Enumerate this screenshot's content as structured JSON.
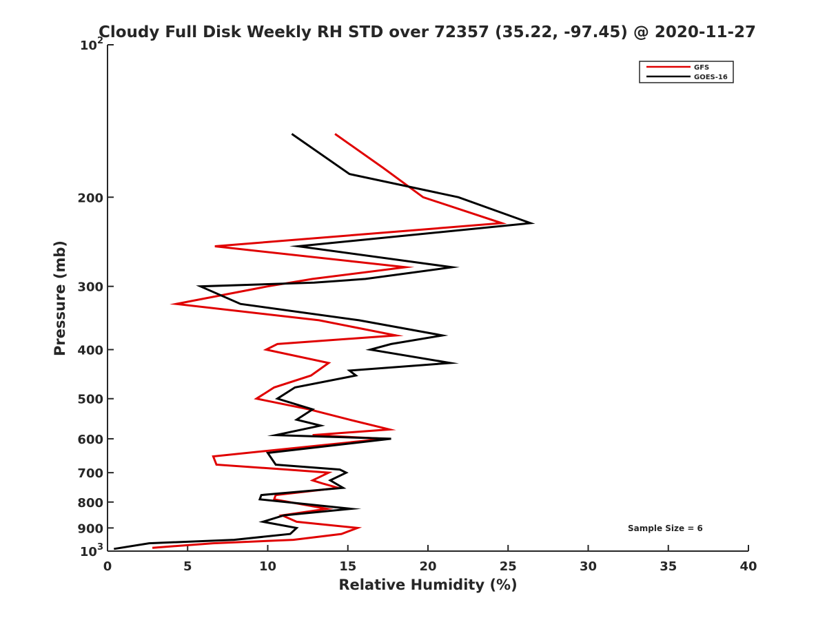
{
  "chart_data": {
    "type": "line",
    "title": "Cloudy Full Disk Weekly RH STD over 72357 (35.22, -97.45) @ 2020-11-27",
    "xlabel": "Relative Humidity (%)",
    "ylabel": "Pressure (mb)",
    "xlim": [
      0,
      40
    ],
    "ylim": [
      100,
      1000
    ],
    "y_scale": "log",
    "y_reversed": true,
    "x_ticks": [
      "0",
      "5",
      "10",
      "15",
      "20",
      "25",
      "30",
      "35",
      "40"
    ],
    "x_tick_values": [
      0,
      5,
      10,
      15,
      20,
      25,
      30,
      35,
      40
    ],
    "y_ticks": [
      {
        "value": 100,
        "base": "10",
        "exp": "2"
      },
      {
        "value": 200,
        "label": "200"
      },
      {
        "value": 300,
        "label": "300"
      },
      {
        "value": 400,
        "label": "400"
      },
      {
        "value": 500,
        "label": "500"
      },
      {
        "value": 600,
        "label": "600"
      },
      {
        "value": 700,
        "label": "700"
      },
      {
        "value": 800,
        "label": "800"
      },
      {
        "value": 900,
        "label": "900"
      },
      {
        "value": 1000,
        "base": "10",
        "exp": "3"
      }
    ],
    "grid": false,
    "legend_position": "top-right",
    "annotation": "Sample Size = 6",
    "series": [
      {
        "name": "GFS",
        "color": "#e00000",
        "points": [
          [
            14.2,
            150
          ],
          [
            17.2,
            175
          ],
          [
            19.7,
            200
          ],
          [
            24.6,
            225
          ],
          [
            6.7,
            250
          ],
          [
            18.6,
            275
          ],
          [
            12.8,
            290
          ],
          [
            10.0,
            300
          ],
          [
            4.3,
            325
          ],
          [
            13.2,
            350
          ],
          [
            18.0,
            375
          ],
          [
            10.6,
            390
          ],
          [
            9.9,
            400
          ],
          [
            13.8,
            425
          ],
          [
            12.7,
            450
          ],
          [
            10.4,
            475
          ],
          [
            9.3,
            500
          ],
          [
            12.6,
            525
          ],
          [
            15.1,
            550
          ],
          [
            17.6,
            575
          ],
          [
            12.8,
            590
          ],
          [
            17.3,
            600
          ],
          [
            6.6,
            650
          ],
          [
            6.8,
            675
          ],
          [
            11.2,
            690
          ],
          [
            13.8,
            700
          ],
          [
            12.8,
            725
          ],
          [
            13.4,
            735
          ],
          [
            14.4,
            750
          ],
          [
            10.5,
            775
          ],
          [
            10.4,
            790
          ],
          [
            13.7,
            825
          ],
          [
            10.9,
            850
          ],
          [
            11.8,
            875
          ],
          [
            15.6,
            900
          ],
          [
            14.6,
            925
          ],
          [
            11.6,
            950
          ],
          [
            6.6,
            965
          ],
          [
            2.8,
            985
          ]
        ]
      },
      {
        "name": "GOES-16",
        "color": "#000000",
        "points": [
          [
            11.5,
            150
          ],
          [
            15.1,
            180
          ],
          [
            21.9,
            200
          ],
          [
            26.4,
            225
          ],
          [
            11.9,
            250
          ],
          [
            21.5,
            275
          ],
          [
            16.1,
            290
          ],
          [
            12.9,
            295
          ],
          [
            5.8,
            300
          ],
          [
            8.3,
            325
          ],
          [
            15.7,
            350
          ],
          [
            20.9,
            375
          ],
          [
            17.7,
            390
          ],
          [
            16.4,
            400
          ],
          [
            21.4,
            425
          ],
          [
            15.1,
            440
          ],
          [
            15.5,
            450
          ],
          [
            11.7,
            475
          ],
          [
            10.6,
            500
          ],
          [
            12.8,
            525
          ],
          [
            11.8,
            550
          ],
          [
            13.3,
            565
          ],
          [
            10.5,
            590
          ],
          [
            17.7,
            600
          ],
          [
            10.0,
            640
          ],
          [
            10.5,
            675
          ],
          [
            14.5,
            690
          ],
          [
            14.9,
            700
          ],
          [
            13.9,
            725
          ],
          [
            14.7,
            750
          ],
          [
            9.6,
            775
          ],
          [
            9.5,
            790
          ],
          [
            15.2,
            825
          ],
          [
            11.0,
            850
          ],
          [
            9.7,
            875
          ],
          [
            11.8,
            900
          ],
          [
            11.4,
            925
          ],
          [
            7.9,
            950
          ],
          [
            2.6,
            965
          ],
          [
            0.4,
            990
          ]
        ]
      }
    ]
  }
}
